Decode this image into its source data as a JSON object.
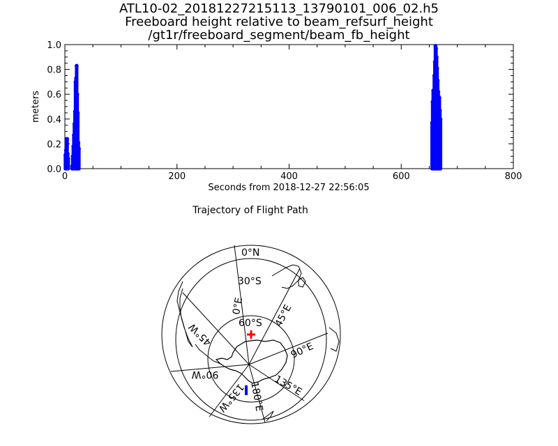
{
  "header": {
    "title_line1": "ATL10-02_20181227215113_13790101_006_02.h5",
    "title_line2": "Freeboard height relative to beam_refsurf_height",
    "title_line3": "/gt1r/freeboard_segment/beam_fb_height"
  },
  "chart_data": {
    "type": "scatter",
    "xlabel": "Seconds from 2018-12-27 22:56:05",
    "ylabel": "meters",
    "xlim": [
      0,
      800
    ],
    "ylim": [
      0.0,
      1.0
    ],
    "x_ticks": [
      0,
      200,
      400,
      600,
      800
    ],
    "x_tick_labels": [
      "0",
      "200",
      "400",
      "600",
      "800"
    ],
    "y_ticks": [
      0.0,
      0.2,
      0.4,
      0.6,
      0.8,
      1.0
    ],
    "y_tick_labels": [
      "0.0",
      "0.2",
      "0.4",
      "0.6",
      "0.8",
      "1.0"
    ],
    "grid": false,
    "series": [
      {
        "color": "#0000ff",
        "clusters": [
          {
            "x_range": [
              0,
              7
            ],
            "y_max": 0.24
          },
          {
            "x_range": [
              13,
              26
            ],
            "y_max": 0.83
          },
          {
            "x_range": [
              654,
              671
            ],
            "y_max": 1.0
          }
        ],
        "peaks": [
          [
            1,
            0.11
          ],
          [
            2,
            0.15
          ],
          [
            3,
            0.23
          ],
          [
            4,
            0.24
          ],
          [
            5,
            0.12
          ],
          [
            6,
            0.08
          ],
          [
            13,
            0.02
          ],
          [
            14,
            0.1
          ],
          [
            15,
            0.18
          ],
          [
            16,
            0.27
          ],
          [
            17,
            0.36
          ],
          [
            18,
            0.46
          ],
          [
            19,
            0.7
          ],
          [
            20,
            0.73
          ],
          [
            21,
            0.83
          ],
          [
            22,
            0.6
          ],
          [
            23,
            0.45
          ],
          [
            24,
            0.21
          ],
          [
            25,
            0.16
          ],
          [
            655,
            0.37
          ],
          [
            656,
            0.54
          ],
          [
            657,
            0.63
          ],
          [
            658,
            0.55
          ],
          [
            659,
            0.75
          ],
          [
            660,
            0.86
          ],
          [
            661,
            0.99
          ],
          [
            662,
            0.97
          ],
          [
            663,
            0.9
          ],
          [
            664,
            0.81
          ],
          [
            665,
            0.71
          ],
          [
            666,
            0.62
          ],
          [
            667,
            0.58
          ],
          [
            668,
            0.57
          ],
          [
            669,
            0.47
          ],
          [
            670,
            0.4
          ]
        ]
      }
    ]
  },
  "map": {
    "title": "Trajectory of Flight Path",
    "labels": {
      "lat_0": "0°N",
      "lat_30": "30°S",
      "lat_60": "60°S",
      "lon_0": "0°E",
      "lon_45e": "45°E",
      "lon_90e": "90°E",
      "lon_135e": "135°E",
      "lon_180": "180°E",
      "lon_45w": "45°W",
      "lon_90w": "90°W",
      "lon_135w": "135°W"
    },
    "start_marker_color": "#ff0000",
    "track_color": "#0000ff"
  }
}
